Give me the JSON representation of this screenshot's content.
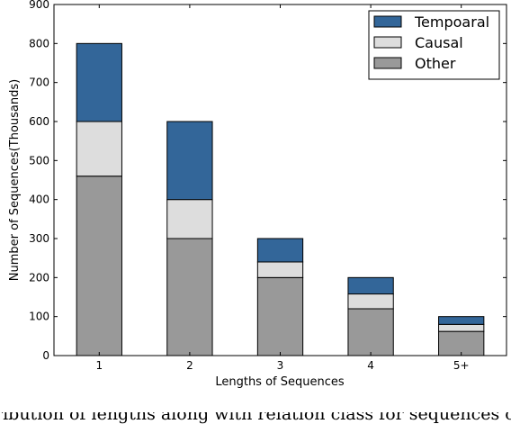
{
  "chart_data": {
    "type": "bar",
    "stacked": true,
    "categories": [
      "1",
      "2",
      "3",
      "4",
      "5+"
    ],
    "series": [
      {
        "name": "Other",
        "color": "#999999",
        "values": [
          460,
          300,
          200,
          120,
          62
        ]
      },
      {
        "name": "Causal",
        "color": "#dddddd",
        "values": [
          140,
          100,
          40,
          38,
          18
        ]
      },
      {
        "name": "Tempoaral",
        "color": "#336699",
        "values": [
          200,
          200,
          60,
          42,
          20
        ]
      }
    ],
    "legend_order": [
      "Tempoaral",
      "Causal",
      "Other"
    ],
    "legend_position": "top-right",
    "title": "",
    "xlabel": "Lengths of Sequences",
    "ylabel": "Number of Sequences(Thousands)",
    "ylim": [
      0,
      900
    ],
    "yticks": [
      0,
      100,
      200,
      300,
      400,
      500,
      600,
      700,
      800,
      900
    ],
    "grid": false
  },
  "caption_fragment": "ribution of lengths along with relation class for sequences of"
}
